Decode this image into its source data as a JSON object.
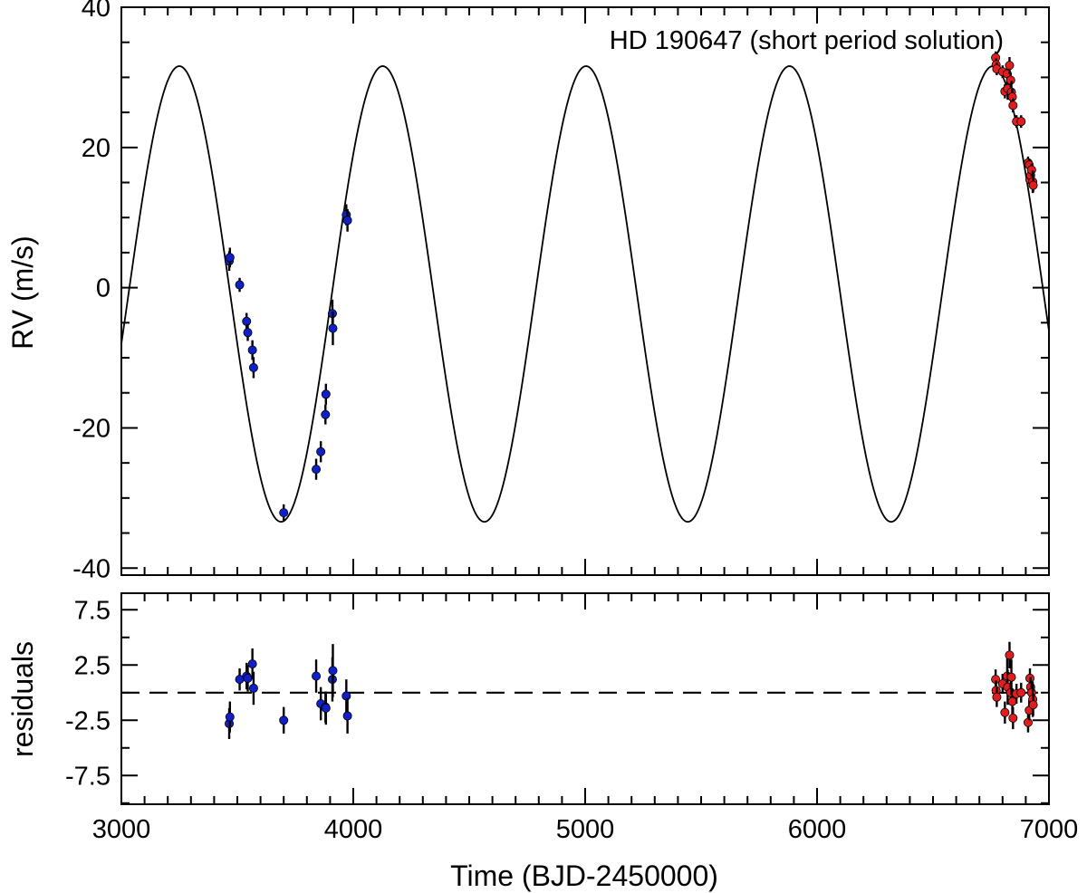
{
  "chart_data": [
    {
      "type": "scatter",
      "title": "HD 190647 (short period solution)",
      "xlabel": "",
      "ylabel": "RV (m/s)",
      "xlim": [
        3000,
        7000
      ],
      "ylim": [
        -41,
        40
      ],
      "x_ticks": [
        3000,
        4000,
        5000,
        6000,
        7000
      ],
      "y_ticks": [
        -40,
        -20,
        0,
        20,
        40
      ],
      "y_tick_labels": [
        "-40",
        "-20",
        "0",
        "20",
        "40"
      ],
      "model_curve": {
        "kind": "sinusoid",
        "period_days": 877,
        "offset_ms": -0.9,
        "semi_amplitude_ms": 32.5,
        "peak_epoch": 3250
      },
      "series": [
        {
          "color": "#1020c8",
          "x": [
            3465,
            3468,
            3510,
            3540,
            3545,
            3565,
            3570,
            3700,
            3840,
            3860,
            3880,
            3882,
            3910,
            3912,
            3970,
            3975
          ],
          "y": [
            3.8,
            4.3,
            0.4,
            -4.8,
            -6.4,
            -8.9,
            -11.4,
            -32.1,
            -25.9,
            -23.4,
            -18.1,
            -15.2,
            -3.7,
            -5.8,
            10.4,
            9.6
          ],
          "err": [
            1.4,
            1.4,
            1.0,
            1.2,
            1.2,
            1.4,
            1.5,
            1.2,
            1.5,
            1.5,
            1.4,
            1.5,
            2.0,
            2.4,
            1.5,
            1.6
          ]
        },
        {
          "color": "#e21d1d",
          "x": [
            6770,
            6772,
            6775,
            6800,
            6810,
            6820,
            6822,
            6830,
            6835,
            6838,
            6842,
            6845,
            6860,
            6880,
            6910,
            6915,
            6918,
            6921,
            6925,
            6930,
            6932
          ],
          "y": [
            32.8,
            31.8,
            31.2,
            30.8,
            28.0,
            30.5,
            28.4,
            31.7,
            29.6,
            27.9,
            27.2,
            26.0,
            23.7,
            23.7,
            17.8,
            17.5,
            15.4,
            16.0,
            16.8,
            15.1,
            14.6
          ],
          "err": [
            0.9,
            0.9,
            0.9,
            0.9,
            1.0,
            1.6,
            1.6,
            1.2,
            1.0,
            1.6,
            1.2,
            1.0,
            0.9,
            0.9,
            0.9,
            0.9,
            0.9,
            0.9,
            0.9,
            1.6,
            1.0
          ]
        }
      ]
    },
    {
      "type": "scatter",
      "xlabel": "Time (BJD-2450000)",
      "ylabel": "residuals",
      "xlim": [
        3000,
        7000
      ],
      "ylim": [
        -10.1,
        9
      ],
      "x_ticks": [
        3000,
        4000,
        5000,
        6000,
        7000
      ],
      "x_tick_labels": [
        "3000",
        "4000",
        "5000",
        "6000",
        "7000"
      ],
      "y_ticks": [
        -7.5,
        -2.5,
        2.5,
        7.5
      ],
      "y_tick_labels": [
        "-7.5",
        "-2.5",
        "2.5",
        "7.5"
      ],
      "reference_line": 0,
      "series": [
        {
          "color": "#1020c8",
          "x": [
            3465,
            3468,
            3510,
            3540,
            3545,
            3565,
            3570,
            3700,
            3840,
            3860,
            3880,
            3882,
            3910,
            3912,
            3970,
            3975
          ],
          "y": [
            -2.8,
            -2.2,
            1.2,
            1.5,
            1.3,
            2.6,
            0.4,
            -2.5,
            1.5,
            -1.0,
            -1.3,
            -1.4,
            1.2,
            2.0,
            -0.3,
            -2.1
          ],
          "err": [
            1.4,
            1.4,
            1.0,
            1.2,
            1.2,
            1.4,
            1.5,
            1.2,
            1.5,
            1.5,
            1.4,
            1.5,
            2.0,
            2.4,
            1.5,
            1.6
          ]
        },
        {
          "color": "#e21d1d",
          "x": [
            6770,
            6772,
            6775,
            6800,
            6810,
            6820,
            6822,
            6830,
            6835,
            6838,
            6842,
            6845,
            6860,
            6880,
            6910,
            6915,
            6918,
            6921,
            6925,
            6930,
            6932
          ],
          "y": [
            1.2,
            0.2,
            -0.4,
            0.8,
            -1.8,
            1.5,
            0.5,
            3.4,
            0.0,
            1.4,
            -0.8,
            -2.3,
            -0.1,
            0.0,
            -2.7,
            -1.6,
            1.3,
            0.5,
            0.0,
            -0.6,
            -1.1
          ],
          "err": [
            0.9,
            0.9,
            0.9,
            0.9,
            1.0,
            1.6,
            1.6,
            1.2,
            1.0,
            1.6,
            1.2,
            1.0,
            0.9,
            0.9,
            0.9,
            0.9,
            0.9,
            0.9,
            0.9,
            1.6,
            1.0
          ]
        }
      ]
    }
  ]
}
